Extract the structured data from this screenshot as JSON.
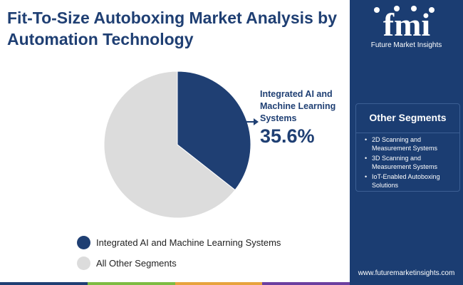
{
  "title": "Fit-To-Size Autoboxing Market Analysis by Automation Technology",
  "chart_data": {
    "type": "pie",
    "slices": [
      {
        "label": "Integrated AI and Machine Learning Systems",
        "value": 35.6,
        "color": "#1f3f73"
      },
      {
        "label": "All Other Segments",
        "value": 64.4,
        "color": "#dcdcdc"
      }
    ],
    "highlight": {
      "label": "Integrated AI and Machine Learning Systems",
      "value_text": "35.6%"
    },
    "legend": [
      {
        "label": "Integrated AI and Machine Learning Systems",
        "color": "#1f3f73"
      },
      {
        "label": "All Other Segments",
        "color": "#dcdcdc"
      }
    ]
  },
  "sidebar": {
    "logo_text": "fmi",
    "logo_caption": "Future Market Insights",
    "other_segments": {
      "heading": "Other Segments",
      "items": [
        "2D Scanning and Measurement Systems",
        "3D Scanning and Measurement Systems",
        "IoT-Enabled Autoboxing Solutions"
      ]
    },
    "website": "www.futuremarketinsights.com"
  },
  "colors": {
    "primary": "#1f3f73",
    "sidebar": "#1b3d72",
    "bottom_bar": [
      "#1f3f73",
      "#7dbb42",
      "#e8a33d",
      "#6b3fa0"
    ]
  }
}
